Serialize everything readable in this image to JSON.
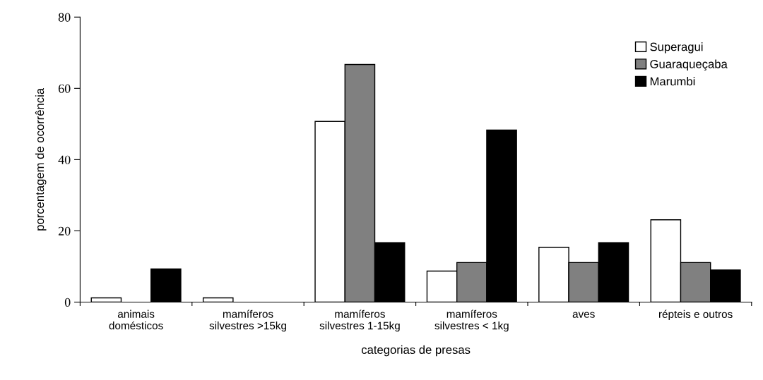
{
  "chart_data": {
    "type": "bar",
    "xlabel": "categorias de presas",
    "ylabel": "porcentagem de ocorrência",
    "categories": [
      "animais\ndomésticos",
      "mamíferos\nsilvestres >15kg",
      "mamíferos\nsilvestres 1-15kg",
      "mamíferos\nsilvestres < 1kg",
      "aves",
      "répteis e outros"
    ],
    "series": [
      {
        "name": "Superagui",
        "color": "#ffffff",
        "values": [
          1.2,
          1.2,
          50.7,
          8.7,
          15.4,
          23.1
        ]
      },
      {
        "name": "Guaraqueçaba",
        "color": "#808080",
        "values": [
          null,
          null,
          66.7,
          11.1,
          11.1,
          11.1
        ]
      },
      {
        "name": "Marumbi",
        "color": "#000000",
        "values": [
          9.3,
          null,
          16.7,
          48.3,
          16.7,
          9.0
        ]
      }
    ],
    "ylim": [
      0,
      80
    ],
    "yticks": [
      0,
      20,
      40,
      60,
      80
    ],
    "grid": false,
    "legend": "top right"
  }
}
